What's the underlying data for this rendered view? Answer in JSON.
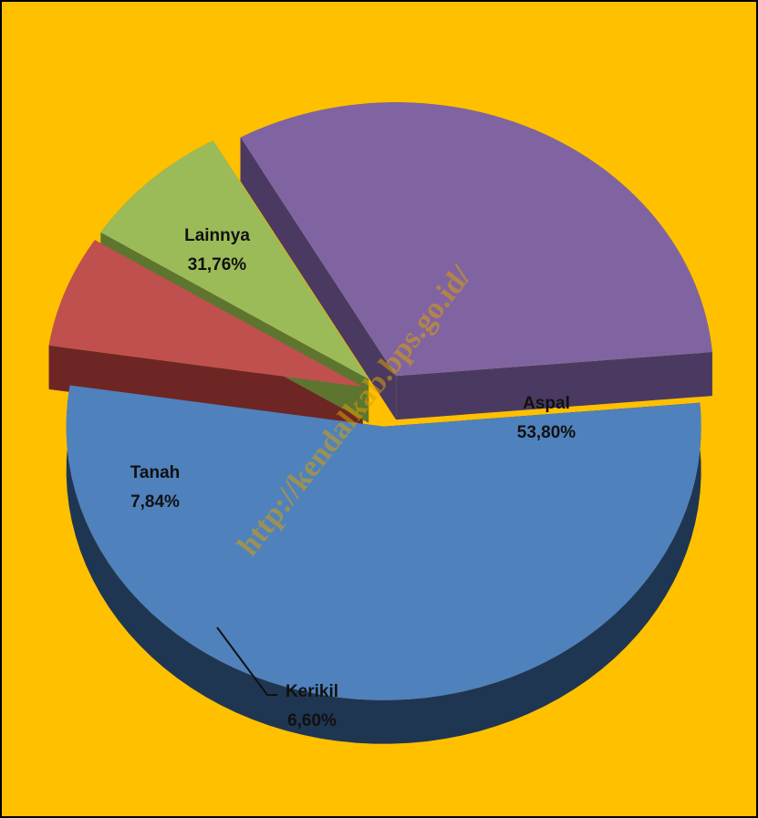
{
  "chart_data": {
    "type": "pie",
    "title": "",
    "start_angle_deg": -5,
    "direction": "clockwise",
    "series": [
      {
        "categories": [
          "Aspal",
          "Kerikil",
          "Tanah",
          "Lainnya"
        ],
        "values": [
          53.8,
          6.6,
          7.84,
          31.76
        ],
        "value_labels": [
          "53,80%",
          "6,60%",
          "7,84%",
          "31,76%"
        ],
        "colors": [
          "#4F81BD",
          "#C0504D",
          "#9BBB59",
          "#8064A2"
        ],
        "side_colors": [
          "#1F3652",
          "#6E2624",
          "#5E7530",
          "#4A3A62"
        ]
      }
    ],
    "exploded": true,
    "style": "3d",
    "background_color": "#FFC000",
    "watermark": "http://kendalkab.bps.go.id/"
  }
}
